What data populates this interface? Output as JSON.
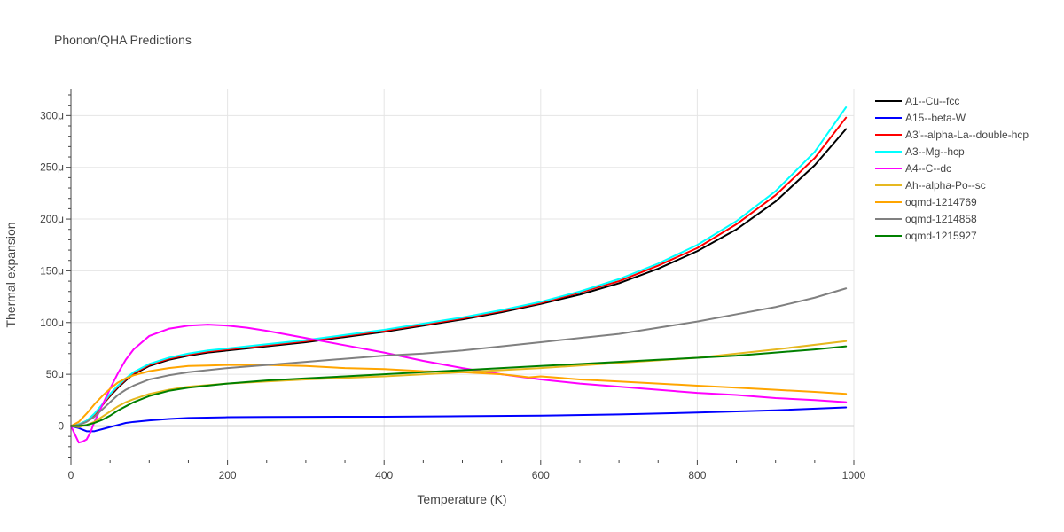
{
  "chart_data": {
    "type": "line",
    "title": "Phonon/QHA Predictions",
    "xlabel": "Temperature (K)",
    "ylabel": "Thermal expansion",
    "xlim": [
      0,
      1000
    ],
    "ylim": [
      -3.3e-05,
      0.000326
    ],
    "x_ticks": [
      0,
      200,
      400,
      600,
      800,
      1000
    ],
    "x_tick_labels": [
      "0",
      "200",
      "400",
      "600",
      "800",
      "1000"
    ],
    "y_ticks": [
      0,
      5e-05,
      0.0001,
      0.00015,
      0.0002,
      0.00025,
      0.0003
    ],
    "y_tick_labels": [
      "0",
      "50μ",
      "100μ",
      "150μ",
      "200μ",
      "250μ",
      "300μ"
    ],
    "grid": true,
    "legend_position": "right",
    "series": [
      {
        "name": "A1--Cu--fcc",
        "color": "#000000",
        "x": [
          0,
          10,
          20,
          30,
          40,
          50,
          60,
          70,
          80,
          100,
          125,
          150,
          175,
          200,
          250,
          300,
          350,
          400,
          450,
          500,
          550,
          600,
          650,
          700,
          750,
          800,
          850,
          900,
          950,
          990
        ],
        "y": [
          0,
          1.5e-06,
          5e-06,
          1.1e-05,
          2e-05,
          2.9e-05,
          3.7e-05,
          4.4e-05,
          5e-05,
          5.8e-05,
          6.4e-05,
          6.8e-05,
          7.1e-05,
          7.3e-05,
          7.7e-05,
          8.1e-05,
          8.6e-05,
          9.1e-05,
          9.7e-05,
          0.000103,
          0.00011,
          0.000118,
          0.000127,
          0.000138,
          0.000152,
          0.000169,
          0.00019,
          0.000217,
          0.000252,
          0.000287
        ]
      },
      {
        "name": "A15--beta-W",
        "color": "#0000ff",
        "x": [
          0,
          10,
          20,
          30,
          40,
          50,
          60,
          70,
          80,
          100,
          125,
          150,
          200,
          250,
          300,
          400,
          500,
          600,
          700,
          800,
          900,
          990
        ],
        "y": [
          0,
          -2e-06,
          -5e-06,
          -5e-06,
          -3e-06,
          -1e-06,
          1e-06,
          3e-06,
          4e-06,
          5.5e-06,
          6.8e-06,
          7.8e-06,
          8.5e-06,
          8.8e-06,
          8.9e-06,
          9e-06,
          9.5e-06,
          1e-05,
          1.12e-05,
          1.3e-05,
          1.52e-05,
          1.8e-05
        ]
      },
      {
        "name": "A3'--alpha-La--double-hcp",
        "color": "#ff0000",
        "x": [
          0,
          10,
          20,
          30,
          40,
          50,
          60,
          70,
          80,
          100,
          125,
          150,
          175,
          200,
          250,
          300,
          350,
          400,
          450,
          500,
          550,
          600,
          650,
          700,
          750,
          800,
          850,
          900,
          950,
          990
        ],
        "y": [
          0,
          1.5e-06,
          5e-06,
          1.1e-05,
          2e-05,
          3e-05,
          3.8e-05,
          4.5e-05,
          5.1e-05,
          5.9e-05,
          6.5e-05,
          6.9e-05,
          7.2e-05,
          7.4e-05,
          7.8e-05,
          8.2e-05,
          8.7e-05,
          9.2e-05,
          9.8e-05,
          0.000104,
          0.000111,
          0.000119,
          0.000129,
          0.00014,
          0.000155,
          0.000172,
          0.000195,
          0.000223,
          0.000259,
          0.000298
        ]
      },
      {
        "name": "A3--Mg--hcp",
        "color": "#00ffff",
        "x": [
          0,
          10,
          20,
          30,
          40,
          50,
          60,
          70,
          80,
          100,
          125,
          150,
          175,
          200,
          250,
          300,
          350,
          400,
          450,
          500,
          550,
          600,
          650,
          700,
          750,
          800,
          850,
          900,
          950,
          990
        ],
        "y": [
          0,
          1.5e-06,
          5e-06,
          1.2e-05,
          2.1e-05,
          3.1e-05,
          3.9e-05,
          4.6e-05,
          5.2e-05,
          6e-05,
          6.6e-05,
          7e-05,
          7.3e-05,
          7.5e-05,
          7.9e-05,
          8.3e-05,
          8.8e-05,
          9.3e-05,
          9.9e-05,
          0.000105,
          0.000112,
          0.00012,
          0.00013,
          0.000142,
          0.000157,
          0.000175,
          0.000198,
          0.000227,
          0.000265,
          0.000308
        ]
      },
      {
        "name": "A4--C--dc",
        "color": "#ff00ff",
        "x": [
          0,
          5,
          10,
          15,
          20,
          25,
          30,
          40,
          50,
          60,
          70,
          80,
          100,
          125,
          150,
          175,
          200,
          225,
          250,
          300,
          350,
          400,
          450,
          500,
          550,
          600,
          650,
          700,
          750,
          800,
          850,
          900,
          950,
          990
        ],
        "y": [
          0,
          -8e-06,
          -1.6e-05,
          -1.5e-05,
          -1.3e-05,
          -6e-06,
          4e-06,
          2e-05,
          3.6e-05,
          5.1e-05,
          6.4e-05,
          7.4e-05,
          8.7e-05,
          9.4e-05,
          9.7e-05,
          9.8e-05,
          9.7e-05,
          9.5e-05,
          9.2e-05,
          8.5e-05,
          7.8e-05,
          7.1e-05,
          6.3e-05,
          5.6e-05,
          5e-05,
          4.5e-05,
          4.1e-05,
          3.8e-05,
          3.5e-05,
          3.2e-05,
          3e-05,
          2.7e-05,
          2.5e-05,
          2.3e-05
        ]
      },
      {
        "name": "Ah--alpha-Po--sc",
        "color": "#e6b820",
        "x": [
          0,
          10,
          20,
          30,
          40,
          50,
          60,
          70,
          80,
          100,
          125,
          150,
          200,
          250,
          300,
          400,
          500,
          600,
          700,
          800,
          900,
          990
        ],
        "y": [
          0,
          -1e-06,
          1e-06,
          4e-06,
          9e-06,
          1.4e-05,
          1.9e-05,
          2.3e-05,
          2.6e-05,
          3.1e-05,
          3.5e-05,
          3.8e-05,
          4.1e-05,
          4.3e-05,
          4.5e-05,
          4.8e-05,
          5.2e-05,
          5.6e-05,
          6.1e-05,
          6.6e-05,
          7.4e-05,
          8.2e-05
        ]
      },
      {
        "name": "oqmd-1214769",
        "color": "#ffa500",
        "x": [
          0,
          10,
          20,
          30,
          40,
          50,
          60,
          70,
          80,
          100,
          125,
          150,
          175,
          200,
          250,
          300,
          350,
          400,
          450,
          500,
          550,
          575,
          585,
          600,
          650,
          700,
          750,
          800,
          850,
          900,
          950,
          990
        ],
        "y": [
          0,
          4e-06,
          1.2e-05,
          2.1e-05,
          2.9e-05,
          3.6e-05,
          4.2e-05,
          4.6e-05,
          4.9e-05,
          5.3e-05,
          5.6e-05,
          5.8e-05,
          5.85e-05,
          5.9e-05,
          5.9e-05,
          5.8e-05,
          5.6e-05,
          5.5e-05,
          5.3e-05,
          5.2e-05,
          5e-05,
          4.8e-05,
          4.7e-05,
          4.8e-05,
          4.5e-05,
          4.3e-05,
          4.1e-05,
          3.9e-05,
          3.7e-05,
          3.5e-05,
          3.3e-05,
          3.1e-05
        ]
      },
      {
        "name": "oqmd-1214858",
        "color": "#808080",
        "x": [
          0,
          10,
          20,
          30,
          40,
          50,
          60,
          70,
          80,
          100,
          125,
          150,
          200,
          250,
          300,
          350,
          400,
          450,
          500,
          550,
          600,
          650,
          700,
          750,
          800,
          850,
          900,
          950,
          990
        ],
        "y": [
          0,
          1e-06,
          4e-06,
          9e-06,
          1.6e-05,
          2.3e-05,
          3e-05,
          3.5e-05,
          3.9e-05,
          4.5e-05,
          4.9e-05,
          5.2e-05,
          5.6e-05,
          5.9e-05,
          6.2e-05,
          6.5e-05,
          6.8e-05,
          7e-05,
          7.3e-05,
          7.7e-05,
          8.1e-05,
          8.5e-05,
          8.9e-05,
          9.5e-05,
          0.000101,
          0.000108,
          0.000115,
          0.000124,
          0.000133
        ]
      },
      {
        "name": "oqmd-1215927",
        "color": "#008000",
        "x": [
          0,
          10,
          20,
          30,
          40,
          50,
          60,
          70,
          80,
          100,
          125,
          150,
          200,
          250,
          300,
          350,
          400,
          450,
          500,
          550,
          600,
          650,
          700,
          750,
          800,
          850,
          900,
          950,
          990
        ],
        "y": [
          0,
          0,
          1e-06,
          3e-06,
          6e-06,
          1e-05,
          1.5e-05,
          1.9e-05,
          2.3e-05,
          2.9e-05,
          3.4e-05,
          3.7e-05,
          4.1e-05,
          4.4e-05,
          4.6e-05,
          4.8e-05,
          5e-05,
          5.2e-05,
          5.4e-05,
          5.6e-05,
          5.8e-05,
          6e-05,
          6.2e-05,
          6.4e-05,
          6.6e-05,
          6.8e-05,
          7.1e-05,
          7.4e-05,
          7.7e-05
        ]
      }
    ]
  }
}
